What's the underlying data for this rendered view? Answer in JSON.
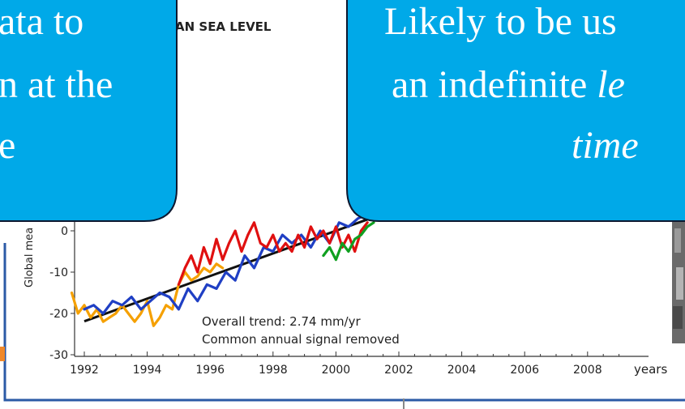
{
  "chart_data": {
    "type": "line",
    "title": "AN SEA LEVEL",
    "ylabel": "Global mea",
    "xlabel": "",
    "x_unit_label": "years",
    "xlim": [
      1992,
      2009.2
    ],
    "ylim": [
      -30,
      10
    ],
    "yticks": [
      0,
      -10,
      -20,
      -30
    ],
    "xticks": [
      1992,
      1994,
      1996,
      1998,
      2000,
      2002,
      2004,
      2006,
      2008
    ],
    "annotations": [
      "Overall trend: 2.74 mm/yr",
      "Common annual signal removed"
    ],
    "series": [
      {
        "color": "#f5a000",
        "x": [
          1991.6,
          1991.8,
          1992.0,
          1992.2,
          1992.4,
          1992.6,
          1992.8,
          1993.0,
          1993.2,
          1993.4,
          1993.6,
          1993.8,
          1994.0,
          1994.2,
          1994.4,
          1994.6,
          1994.8,
          1995.0,
          1995.2,
          1995.4,
          1995.6,
          1995.8,
          1996.0,
          1996.2,
          1996.4
        ],
        "y": [
          -15,
          -20,
          -18,
          -21,
          -19,
          -22,
          -21,
          -20,
          -18,
          -20,
          -22,
          -20,
          -17,
          -23,
          -21,
          -18,
          -19,
          -13,
          -10,
          -12,
          -11,
          -9,
          -10,
          -8,
          -9
        ]
      },
      {
        "color": "#1f3fc4",
        "x": [
          1992.0,
          1992.3,
          1992.6,
          1992.9,
          1993.2,
          1993.5,
          1993.8,
          1994.1,
          1994.4,
          1994.7,
          1995.0,
          1995.3,
          1995.6,
          1995.9,
          1996.2,
          1996.5,
          1996.8,
          1997.1,
          1997.4,
          1997.7,
          1998.0,
          1998.3,
          1998.6,
          1998.9,
          1999.2,
          1999.5,
          1999.8,
          2000.1,
          2000.4,
          2000.7,
          2001.0
        ],
        "y": [
          -19,
          -18,
          -20,
          -17,
          -18,
          -16,
          -19,
          -17,
          -15,
          -16,
          -19,
          -14,
          -17,
          -13,
          -14,
          -10,
          -12,
          -6,
          -9,
          -4,
          -5,
          -1,
          -3,
          -1,
          -4,
          0,
          -3,
          2,
          1,
          3,
          4
        ]
      },
      {
        "color": "#e01010",
        "x": [
          1995.0,
          1995.2,
          1995.4,
          1995.6,
          1995.8,
          1996.0,
          1996.2,
          1996.4,
          1996.6,
          1996.8,
          1997.0,
          1997.2,
          1997.4,
          1997.6,
          1997.8,
          1998.0,
          1998.2,
          1998.4,
          1998.6,
          1998.8,
          1999.0,
          1999.2,
          1999.4,
          1999.6,
          1999.8,
          2000.0,
          2000.2,
          2000.4,
          2000.6,
          2000.8,
          2001.0
        ],
        "y": [
          -13,
          -9,
          -6,
          -10,
          -4,
          -8,
          -2,
          -7,
          -3,
          0,
          -5,
          -1,
          2,
          -3,
          -4,
          -1,
          -5,
          -3,
          -5,
          -1,
          -4,
          1,
          -2,
          0,
          -3,
          1,
          -4,
          -1,
          -5,
          0,
          2
        ]
      },
      {
        "color": "#10a020",
        "x": [
          1999.6,
          1999.8,
          2000.0,
          2000.2,
          2000.4,
          2000.6,
          2000.8,
          2001.0,
          2001.2
        ],
        "y": [
          -6,
          -4,
          -7,
          -3,
          -5,
          -2,
          -1,
          1,
          2
        ]
      }
    ],
    "trend": {
      "color": "#111111",
      "x": [
        1992,
        2001.2
      ],
      "y": [
        -21.9,
        3.3
      ]
    }
  },
  "callouts": {
    "left_lines": [
      "ata to",
      "n at the",
      "e"
    ],
    "right_line1": "Likely to be us",
    "right_line2_plain": "an indefinite ",
    "right_line2_italic": "le",
    "right_line3_italic": "time"
  },
  "colors": {
    "callout_fill": "#00a9e8",
    "frame": "#2b5aa6",
    "accent": "#f0882a"
  }
}
